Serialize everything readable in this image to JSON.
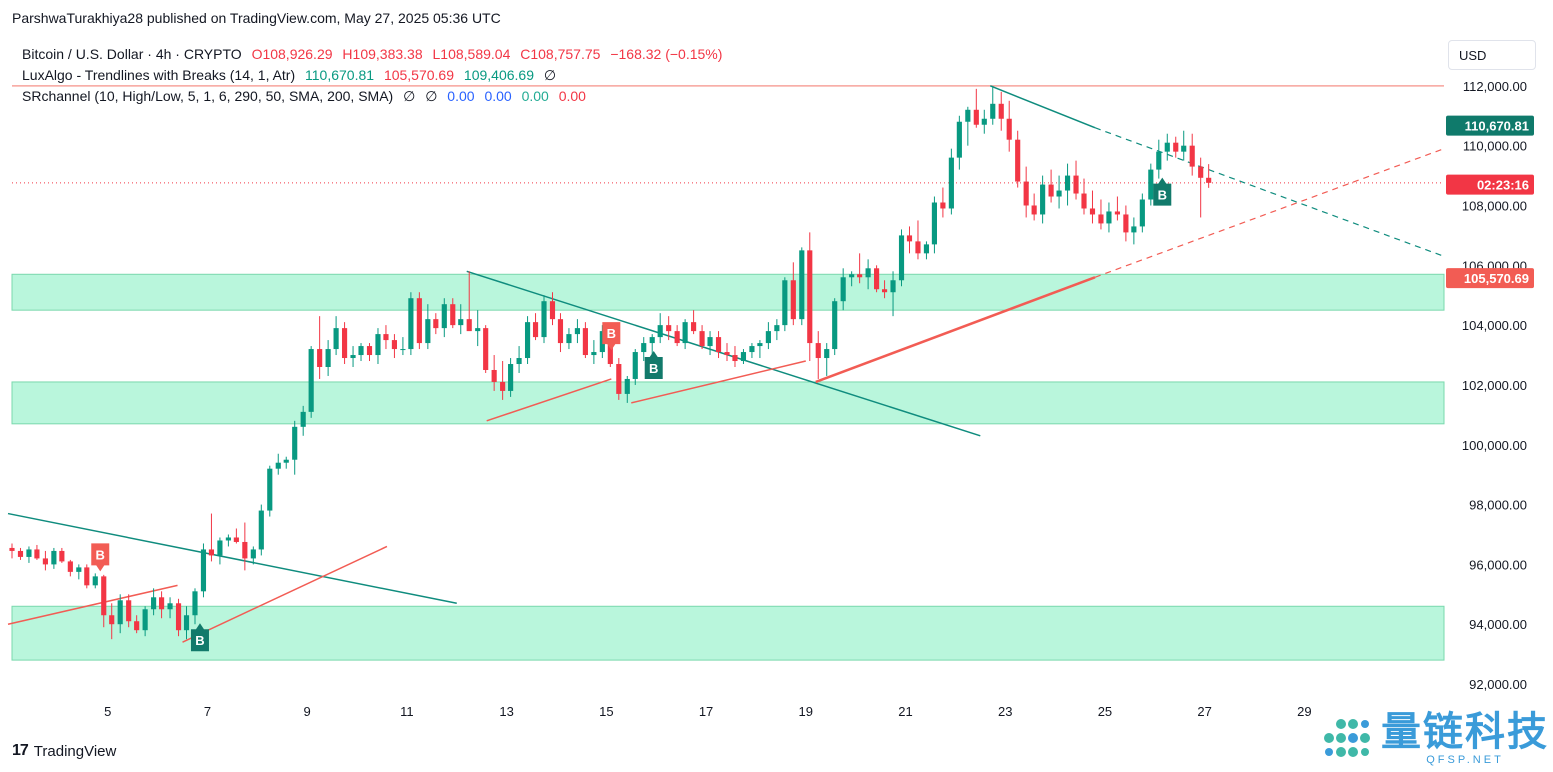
{
  "attribution": "ParshwaTurakhiya28 published on TradingView.com, May 27, 2025 05:36 UTC",
  "legend": {
    "main_title": "Bitcoin / U.S. Dollar · 4h · CRYPTO",
    "o": "O108,926.29",
    "h": "H109,383.38",
    "l": "L108,589.04",
    "c": "C108,757.75",
    "change": "−168.32 (−0.15%)",
    "lux_title": "LuxAlgo - Trendlines with Breaks (14, 1, Atr)",
    "lux_v1": "110,670.81",
    "lux_v2": "105,570.69",
    "lux_v3": "109,406.69",
    "lux_v4": "∅",
    "sr_title": "SRchannel (10, High/Low, 5, 1, 6, 290, 50, SMA, 200, SMA)",
    "sr_v1": "∅",
    "sr_v2": "∅",
    "sr_v3": "0.00",
    "sr_v4": "0.00",
    "sr_v5": "0.00",
    "sr_v6": "0.00"
  },
  "currency_button": "USD",
  "price_labels": {
    "lux_upper": "110,670.81",
    "countdown": "02:23:16",
    "lux_lower": "105,570.69"
  },
  "footer_brand": "TradingView",
  "watermark": {
    "text": "量链科技",
    "sub": "QFSP.NET"
  },
  "colors": {
    "up": "#089981",
    "down": "#f23645",
    "zone": "#b9f6dc",
    "zone_border": "#7ad8ad"
  },
  "chart_data": {
    "type": "candlestick",
    "symbol": "Bitcoin / U.S. Dollar",
    "interval": "4h",
    "x_tick_labels": [
      "5",
      "7",
      "9",
      "11",
      "13",
      "15",
      "17",
      "19",
      "21",
      "23",
      "25",
      "27",
      "29"
    ],
    "x_tick_days": [
      5,
      7,
      9,
      11,
      13,
      15,
      17,
      19,
      21,
      23,
      25,
      27,
      29
    ],
    "y_tick_values": [
      92000,
      94000,
      96000,
      98000,
      100000,
      102000,
      104000,
      106000,
      108000,
      110000,
      112000
    ],
    "y_tick_labels": [
      "92,000.00",
      "94,000.00",
      "96,000.00",
      "98,000.00",
      "100,000.00",
      "102,000.00",
      "104,000.00",
      "106,000.00",
      "108,000.00",
      "110,000.00",
      "112,000.00"
    ],
    "ylim": [
      91600,
      113600
    ],
    "xlim": [
      3.08,
      31.8
    ],
    "last_price": 108757.75,
    "last_day": 27.17,
    "sr_zones": [
      [
        104500,
        105700
      ],
      [
        100700,
        102100
      ],
      [
        92800,
        94600
      ]
    ],
    "horizontal_line": 112000,
    "trendlines_teal": [
      {
        "from": [
          3.0,
          97700
        ],
        "to": [
          12.0,
          94700
        ]
      },
      {
        "from": [
          12.2,
          105800
        ],
        "to": [
          22.5,
          100300
        ]
      },
      {
        "from": [
          22.7,
          112000
        ],
        "to": [
          24.8,
          110600
        ]
      }
    ],
    "trendlines_teal_dashed": [
      {
        "from": [
          24.8,
          110600
        ],
        "to": [
          31.8,
          106300
        ]
      }
    ],
    "trendlines_red": [
      {
        "from": [
          3.0,
          94000
        ],
        "to": [
          6.4,
          95300
        ]
      },
      {
        "from": [
          6.5,
          93400
        ],
        "to": [
          10.6,
          96600
        ]
      },
      {
        "from": [
          12.6,
          100800
        ],
        "to": [
          15.1,
          102200
        ]
      },
      {
        "from": [
          15.5,
          101400
        ],
        "to": [
          19.0,
          102800
        ]
      }
    ],
    "trendlines_red_solid_long": [
      {
        "from": [
          19.2,
          102100
        ],
        "to": [
          24.8,
          105600
        ]
      }
    ],
    "trendlines_red_dashed": [
      {
        "from": [
          24.8,
          105600
        ],
        "to": [
          31.8,
          109900
        ]
      }
    ],
    "markers": [
      {
        "day": 4.85,
        "price": 95900,
        "label": "B",
        "kind": "break-down"
      },
      {
        "day": 6.85,
        "price": 93900,
        "label": "B",
        "kind": "break-up"
      },
      {
        "day": 15.1,
        "price": 103300,
        "label": "B",
        "kind": "break-down"
      },
      {
        "day": 15.95,
        "price": 103000,
        "label": "B",
        "kind": "break-up"
      },
      {
        "day": 26.15,
        "price": 108800,
        "label": "B",
        "kind": "break-up"
      }
    ],
    "candles": [
      [
        3.08,
        96550,
        96700,
        96200,
        96450
      ],
      [
        3.25,
        96450,
        96550,
        96150,
        96250
      ],
      [
        3.42,
        96250,
        96600,
        96050,
        96500
      ],
      [
        3.58,
        96500,
        96650,
        96150,
        96200
      ],
      [
        3.75,
        96200,
        96450,
        95800,
        96000
      ],
      [
        3.92,
        96000,
        96550,
        95850,
        96450
      ],
      [
        4.08,
        96450,
        96550,
        96050,
        96100
      ],
      [
        4.25,
        96100,
        96150,
        95600,
        95750
      ],
      [
        4.42,
        95750,
        96000,
        95500,
        95900
      ],
      [
        4.58,
        95900,
        96000,
        95200,
        95300
      ],
      [
        4.75,
        95300,
        95700,
        95200,
        95600
      ],
      [
        4.92,
        95600,
        95650,
        93900,
        94300
      ],
      [
        5.08,
        94300,
        94700,
        93500,
        94000
      ],
      [
        5.25,
        94000,
        95000,
        93700,
        94800
      ],
      [
        5.42,
        94800,
        95000,
        93900,
        94100
      ],
      [
        5.58,
        94100,
        94300,
        93700,
        93800
      ],
      [
        5.75,
        93800,
        94600,
        93600,
        94500
      ],
      [
        5.92,
        94500,
        95200,
        94300,
        94900
      ],
      [
        6.08,
        94900,
        95100,
        94200,
        94500
      ],
      [
        6.25,
        94500,
        94900,
        94200,
        94700
      ],
      [
        6.42,
        94700,
        94850,
        93600,
        93800
      ],
      [
        6.58,
        93800,
        94600,
        93500,
        94300
      ],
      [
        6.75,
        94300,
        95200,
        94000,
        95100
      ],
      [
        6.92,
        95100,
        96700,
        94900,
        96500
      ],
      [
        7.08,
        96500,
        97700,
        96100,
        96300
      ],
      [
        7.25,
        96300,
        96900,
        96000,
        96800
      ],
      [
        7.42,
        96800,
        97000,
        96600,
        96900
      ],
      [
        7.58,
        96900,
        97200,
        96700,
        96750
      ],
      [
        7.75,
        96750,
        97400,
        95800,
        96200
      ],
      [
        7.92,
        96200,
        96600,
        96000,
        96500
      ],
      [
        8.08,
        96500,
        98000,
        96300,
        97800
      ],
      [
        8.25,
        97800,
        99300,
        97600,
        99200
      ],
      [
        8.42,
        99200,
        99700,
        99000,
        99400
      ],
      [
        8.58,
        99400,
        99600,
        99200,
        99500
      ],
      [
        8.75,
        99500,
        100800,
        99000,
        100600
      ],
      [
        8.92,
        100600,
        101300,
        100300,
        101100
      ],
      [
        9.08,
        101100,
        103300,
        100900,
        103200
      ],
      [
        9.25,
        103200,
        104300,
        102200,
        102600
      ],
      [
        9.42,
        102600,
        103500,
        102300,
        103200
      ],
      [
        9.58,
        103200,
        104300,
        103000,
        103900
      ],
      [
        9.75,
        103900,
        104100,
        102700,
        102900
      ],
      [
        9.92,
        102900,
        103300,
        102600,
        103000
      ],
      [
        10.08,
        103000,
        103400,
        102800,
        103300
      ],
      [
        10.25,
        103300,
        103400,
        102800,
        103000
      ],
      [
        10.42,
        103000,
        103900,
        102700,
        103700
      ],
      [
        10.58,
        103700,
        104000,
        103200,
        103500
      ],
      [
        10.75,
        103500,
        103700,
        102900,
        103200
      ],
      [
        10.92,
        103200,
        103600,
        103000,
        103200
      ],
      [
        11.08,
        103200,
        105100,
        103000,
        104900
      ],
      [
        11.25,
        104900,
        105100,
        103200,
        103400
      ],
      [
        11.42,
        103400,
        104700,
        103200,
        104200
      ],
      [
        11.58,
        104200,
        104400,
        103700,
        103900
      ],
      [
        11.75,
        103900,
        104900,
        103600,
        104700
      ],
      [
        11.92,
        104700,
        104900,
        103900,
        104000
      ],
      [
        12.08,
        104000,
        104700,
        103700,
        104200
      ],
      [
        12.25,
        104200,
        105800,
        103900,
        103800
      ],
      [
        12.42,
        103800,
        104500,
        103300,
        103900
      ],
      [
        12.58,
        103900,
        104000,
        102400,
        102500
      ],
      [
        12.75,
        102500,
        103000,
        101800,
        102100
      ],
      [
        12.92,
        102100,
        102800,
        101500,
        101800
      ],
      [
        13.08,
        101800,
        102900,
        101600,
        102700
      ],
      [
        13.25,
        102700,
        103300,
        102400,
        102900
      ],
      [
        13.42,
        102900,
        104300,
        102700,
        104100
      ],
      [
        13.58,
        104100,
        104400,
        103500,
        103600
      ],
      [
        13.75,
        103600,
        105000,
        103400,
        104800
      ],
      [
        13.92,
        104800,
        105100,
        104000,
        104200
      ],
      [
        14.08,
        104200,
        104400,
        103100,
        103400
      ],
      [
        14.25,
        103400,
        103900,
        103200,
        103700
      ],
      [
        14.42,
        103700,
        104200,
        103400,
        103900
      ],
      [
        14.58,
        103900,
        104100,
        102900,
        103000
      ],
      [
        14.75,
        103000,
        103500,
        102700,
        103100
      ],
      [
        14.92,
        103100,
        104000,
        102900,
        103800
      ],
      [
        15.08,
        103800,
        103900,
        102600,
        102700
      ],
      [
        15.25,
        102700,
        102900,
        101500,
        101700
      ],
      [
        15.42,
        101700,
        102300,
        101400,
        102200
      ],
      [
        15.58,
        102200,
        103200,
        102000,
        103100
      ],
      [
        15.75,
        103100,
        103600,
        102800,
        103400
      ],
      [
        15.92,
        103400,
        103700,
        102900,
        103600
      ],
      [
        16.08,
        103600,
        104400,
        103400,
        104000
      ],
      [
        16.25,
        104000,
        104300,
        103500,
        103800
      ],
      [
        16.42,
        103800,
        104000,
        103300,
        103400
      ],
      [
        16.58,
        103400,
        104200,
        103200,
        104100
      ],
      [
        16.75,
        104100,
        104500,
        103700,
        103800
      ],
      [
        16.92,
        103800,
        104000,
        103200,
        103300
      ],
      [
        17.08,
        103300,
        103800,
        103000,
        103600
      ],
      [
        17.25,
        103600,
        103800,
        102900,
        103100
      ],
      [
        17.42,
        103100,
        103400,
        102800,
        103000
      ],
      [
        17.58,
        103000,
        103300,
        102600,
        102800
      ],
      [
        17.75,
        102800,
        103200,
        102700,
        103100
      ],
      [
        17.92,
        103100,
        103400,
        102900,
        103300
      ],
      [
        18.08,
        103300,
        103500,
        102900,
        103400
      ],
      [
        18.25,
        103400,
        104100,
        103200,
        103800
      ],
      [
        18.42,
        103800,
        104200,
        103500,
        104000
      ],
      [
        18.58,
        104000,
        105600,
        103800,
        105500
      ],
      [
        18.75,
        105500,
        106100,
        104000,
        104200
      ],
      [
        18.92,
        104200,
        106600,
        104000,
        106500
      ],
      [
        19.08,
        106500,
        107100,
        102800,
        103400
      ],
      [
        19.25,
        103400,
        103800,
        102200,
        102900
      ],
      [
        19.42,
        102900,
        103400,
        102300,
        103200
      ],
      [
        19.58,
        103200,
        104900,
        103000,
        104800
      ],
      [
        19.75,
        104800,
        105900,
        104500,
        105600
      ],
      [
        19.92,
        105600,
        105800,
        105300,
        105700
      ],
      [
        20.08,
        105700,
        106400,
        105400,
        105600
      ],
      [
        20.25,
        105600,
        106200,
        105200,
        105900
      ],
      [
        20.42,
        105900,
        106000,
        105100,
        105200
      ],
      [
        20.58,
        105200,
        105500,
        104900,
        105100
      ],
      [
        20.75,
        105100,
        105800,
        104300,
        105500
      ],
      [
        20.92,
        105500,
        107200,
        105300,
        107000
      ],
      [
        21.08,
        107000,
        107300,
        106400,
        106800
      ],
      [
        21.25,
        106800,
        107500,
        106200,
        106400
      ],
      [
        21.42,
        106400,
        106800,
        106200,
        106700
      ],
      [
        21.58,
        106700,
        108300,
        106400,
        108100
      ],
      [
        21.75,
        108100,
        108600,
        107600,
        107900
      ],
      [
        21.92,
        107900,
        109900,
        107700,
        109600
      ],
      [
        22.08,
        109600,
        111000,
        109200,
        110800
      ],
      [
        22.25,
        110800,
        111300,
        110000,
        111200
      ],
      [
        22.42,
        111200,
        111900,
        110600,
        110700
      ],
      [
        22.58,
        110700,
        111200,
        110400,
        110900
      ],
      [
        22.75,
        110900,
        112000,
        110700,
        111400
      ],
      [
        22.92,
        111400,
        111800,
        110500,
        110900
      ],
      [
        23.08,
        110900,
        111500,
        109800,
        110200
      ],
      [
        23.25,
        110200,
        110500,
        108600,
        108800
      ],
      [
        23.42,
        108800,
        109300,
        107600,
        108000
      ],
      [
        23.58,
        108000,
        108400,
        107500,
        107700
      ],
      [
        23.75,
        107700,
        109000,
        107400,
        108700
      ],
      [
        23.92,
        108700,
        109200,
        108100,
        108300
      ],
      [
        24.08,
        108300,
        109000,
        107900,
        108500
      ],
      [
        24.25,
        108500,
        109400,
        108000,
        109000
      ],
      [
        24.42,
        109000,
        109500,
        108200,
        108400
      ],
      [
        24.58,
        108400,
        108900,
        107700,
        107900
      ],
      [
        24.75,
        107900,
        108500,
        107400,
        107700
      ],
      [
        24.92,
        107700,
        108200,
        107200,
        107400
      ],
      [
        25.08,
        107400,
        108100,
        107100,
        107800
      ],
      [
        25.25,
        107800,
        108300,
        107500,
        107700
      ],
      [
        25.42,
        107700,
        108000,
        106800,
        107100
      ],
      [
        25.58,
        107100,
        107600,
        106700,
        107300
      ],
      [
        25.75,
        107300,
        108400,
        107100,
        108200
      ],
      [
        25.92,
        108200,
        109400,
        108000,
        109200
      ],
      [
        26.08,
        109200,
        110200,
        108900,
        109800
      ],
      [
        26.25,
        109800,
        110400,
        109500,
        110100
      ],
      [
        26.42,
        110100,
        110300,
        109600,
        109800
      ],
      [
        26.58,
        109800,
        110500,
        109500,
        110000
      ],
      [
        26.75,
        110000,
        110400,
        109000,
        109300
      ],
      [
        26.92,
        109300,
        109600,
        107600,
        108926
      ],
      [
        27.08,
        108926,
        109383,
        108589,
        108757
      ]
    ]
  }
}
